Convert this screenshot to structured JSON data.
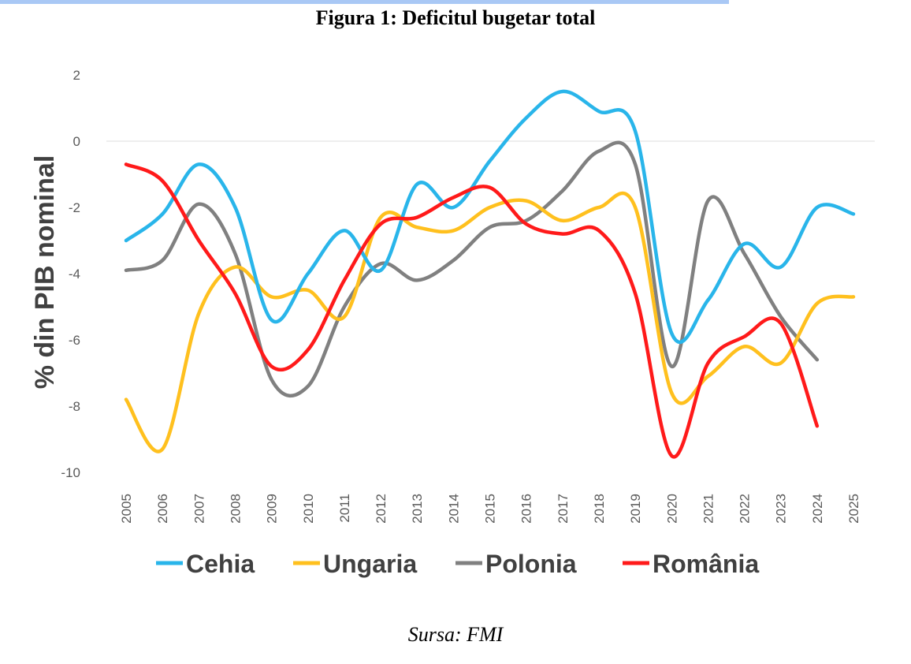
{
  "title": "Figura 1: Deficitul bugetar total",
  "source": "Sursa: FMI",
  "chart_data": {
    "type": "line",
    "title": "Figura 1: Deficitul bugetar total",
    "xlabel": "",
    "ylabel": "% din PIB nominal",
    "ylim": [
      -10,
      2
    ],
    "yticks": [
      "2",
      "0",
      "-2",
      "-4",
      "-6",
      "-8",
      "-10"
    ],
    "ytick_values": [
      2,
      0,
      -2,
      -4,
      -6,
      -8,
      -10
    ],
    "grid": "zero line only",
    "legend_position": "bottom",
    "x": [
      "2005",
      "2006",
      "2007",
      "2008",
      "2009",
      "2010",
      "2011",
      "2012",
      "2013",
      "2014",
      "2015",
      "2016",
      "2017",
      "2018",
      "2019",
      "2020",
      "2021",
      "2022",
      "2023",
      "2024",
      "2025"
    ],
    "series": [
      {
        "name": "Cehia",
        "color": "#29b5ea",
        "values": [
          -3.0,
          -2.2,
          -0.7,
          -2.0,
          -5.4,
          -4.0,
          -2.7,
          -3.9,
          -1.3,
          -2.0,
          -0.6,
          0.7,
          1.5,
          0.9,
          0.3,
          -5.8,
          -4.8,
          -3.1,
          -3.8,
          -2.0,
          -2.2
        ]
      },
      {
        "name": "Ungaria",
        "color": "#ffc01e",
        "values": [
          -7.8,
          -9.3,
          -5.2,
          -3.8,
          -4.7,
          -4.5,
          -5.3,
          -2.3,
          -2.6,
          -2.7,
          -2.0,
          -1.8,
          -2.4,
          -2.0,
          -2.0,
          -7.6,
          -7.1,
          -6.2,
          -6.7,
          -4.9,
          -4.7
        ]
      },
      {
        "name": "Polonia",
        "color": "#808080",
        "values": [
          -3.9,
          -3.6,
          -1.9,
          -3.4,
          -7.2,
          -7.4,
          -5.0,
          -3.7,
          -4.2,
          -3.6,
          -2.6,
          -2.4,
          -1.5,
          -0.3,
          -0.7,
          -6.8,
          -1.8,
          -3.4,
          -5.3,
          -6.6,
          null
        ]
      },
      {
        "name": "România",
        "color": "#ff1a1a",
        "values": [
          -0.7,
          -1.2,
          -3.0,
          -4.6,
          -6.8,
          -6.3,
          -4.2,
          -2.5,
          -2.3,
          -1.7,
          -1.4,
          -2.5,
          -2.8,
          -2.7,
          -4.6,
          -9.5,
          -6.7,
          -5.9,
          -5.5,
          -8.6,
          null
        ]
      }
    ]
  }
}
